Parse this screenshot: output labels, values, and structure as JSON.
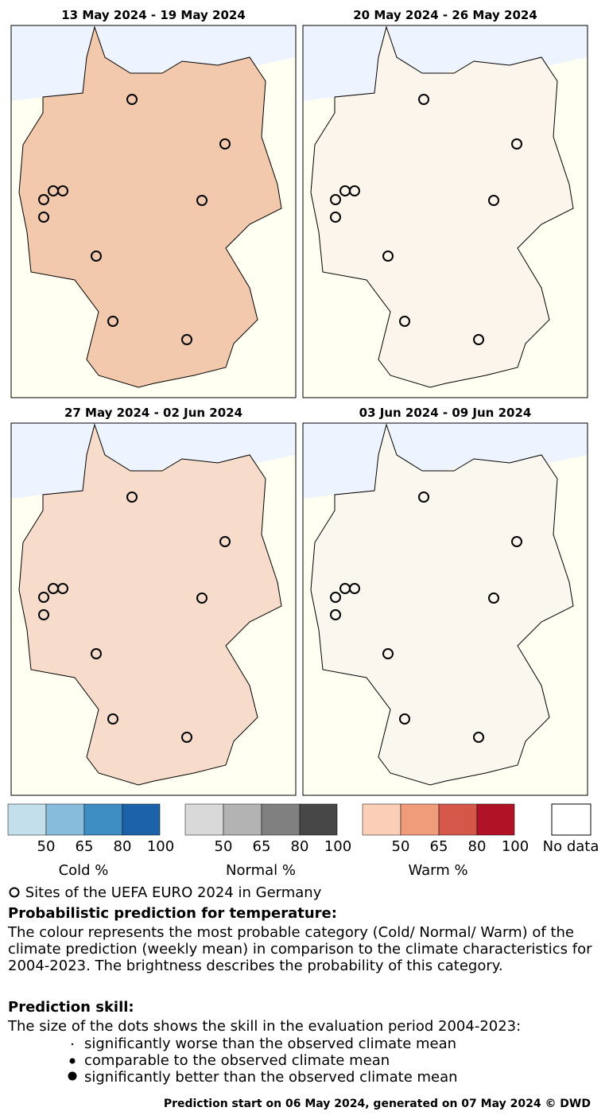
{
  "panels": [
    {
      "title": "13 May 2024 - 19 May 2024"
    },
    {
      "title": "20 May 2024 - 26 May 2024"
    },
    {
      "title": "27 May 2024 - 02 Jun 2024"
    },
    {
      "title": "03 Jun 2024 - 09 Jun 2024"
    }
  ],
  "legend": {
    "cold": {
      "ticks": [
        "50",
        "65",
        "80",
        "100"
      ],
      "label": "Cold   %"
    },
    "normal": {
      "ticks": [
        "50",
        "65",
        "80",
        "100"
      ],
      "label": "Normal   %"
    },
    "warm": {
      "ticks": [
        "50",
        "65",
        "80",
        "100"
      ],
      "label": "Warm   %"
    },
    "nodata": "No data"
  },
  "sites": "Sites of the UEFA EURO 2024 in Germany",
  "probabilistic": {
    "heading": "Probabilistic prediction for temperature:",
    "text": "The colour represents the most probable category (Cold/ Normal/ Warm) of the climate prediction (weekly mean) in comparison to the climate characteristics for 2004-2023. The brightness describes the probability of this category."
  },
  "skill": {
    "heading": "Prediction skill:",
    "text": "The size of the dots shows the skill in the evaluation period 2004-2023:",
    "items": [
      "significantly worse than the observed climate mean",
      "comparable to the observed climate mean",
      "significantly better than the observed climate mean"
    ]
  },
  "footer": "Prediction start on 06 May 2024, generated on 07 May 2024 © DWD"
}
